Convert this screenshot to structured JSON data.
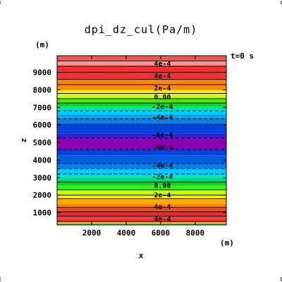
{
  "chart_data": {
    "type": "heatmap",
    "title": "dpi_dz_cul(Pa/m)",
    "time_label": "t=0  s",
    "xlabel": "x",
    "ylabel": "z",
    "x_unit": "(m)",
    "y_unit": "(m)",
    "xlim": [
      0,
      9800
    ],
    "ylim": [
      300,
      9950
    ],
    "x_ticks": [
      2000,
      4000,
      6000,
      8000
    ],
    "x_tick_labels": [
      "2000",
      "4000",
      "6000",
      "8000"
    ],
    "y_ticks": [
      1000,
      2000,
      3000,
      4000,
      5000,
      6000,
      7000,
      8000,
      9000
    ],
    "y_tick_labels": [
      "1000",
      "2000",
      "3000",
      "4000",
      "5000",
      "6000",
      "7000",
      "8000",
      "9000"
    ],
    "bands": [
      {
        "z0": 9650,
        "z1": 9950,
        "color": "#ff5050"
      },
      {
        "z0": 9350,
        "z1": 9650,
        "color": "#ff9090"
      },
      {
        "z0": 9000,
        "z1": 9350,
        "color": "#ff2a2a"
      },
      {
        "z0": 8600,
        "z1": 9000,
        "color": "#ff3030"
      },
      {
        "z0": 8300,
        "z1": 8600,
        "color": "#ff8800"
      },
      {
        "z0": 8000,
        "z1": 8300,
        "color": "#ff8800"
      },
      {
        "z0": 7800,
        "z1": 8000,
        "color": "#ffee00"
      },
      {
        "z0": 7500,
        "z1": 7800,
        "color": "#ccff00"
      },
      {
        "z0": 7250,
        "z1": 7500,
        "color": "#44ee00"
      },
      {
        "z0": 7050,
        "z1": 7250,
        "color": "#00dd22"
      },
      {
        "z0": 6800,
        "z1": 7050,
        "color": "#00ddbb"
      },
      {
        "z0": 6600,
        "z1": 6800,
        "color": "#00ccff"
      },
      {
        "z0": 6350,
        "z1": 6600,
        "color": "#00a8f0"
      },
      {
        "z0": 6050,
        "z1": 6350,
        "color": "#0080e8"
      },
      {
        "z0": 5500,
        "z1": 6050,
        "color": "#0044dd"
      },
      {
        "z0": 5250,
        "z1": 5500,
        "color": "#3322cc"
      },
      {
        "z0": 4600,
        "z1": 5250,
        "color": "#8a00b0"
      },
      {
        "z0": 4250,
        "z1": 4600,
        "color": "#0044dd"
      },
      {
        "z0": 3800,
        "z1": 4250,
        "color": "#0060e0"
      },
      {
        "z0": 3500,
        "z1": 3800,
        "color": "#0080e8"
      },
      {
        "z0": 3200,
        "z1": 3500,
        "color": "#00ccff"
      },
      {
        "z0": 3000,
        "z1": 3200,
        "color": "#00e0e0"
      },
      {
        "z0": 2750,
        "z1": 3000,
        "color": "#00dd77"
      },
      {
        "z0": 2550,
        "z1": 2750,
        "color": "#00dd22"
      },
      {
        "z0": 2300,
        "z1": 2550,
        "color": "#44ee00"
      },
      {
        "z0": 2000,
        "z1": 2300,
        "color": "#ccff00"
      },
      {
        "z0": 1800,
        "z1": 2000,
        "color": "#ffee00"
      },
      {
        "z0": 1500,
        "z1": 1800,
        "color": "#ffaa00"
      },
      {
        "z0": 1300,
        "z1": 1500,
        "color": "#ff8800"
      },
      {
        "z0": 1050,
        "z1": 1300,
        "color": "#ff4422"
      },
      {
        "z0": 800,
        "z1": 1050,
        "color": "#ff2222"
      },
      {
        "z0": 500,
        "z1": 800,
        "color": "#ff3a3a"
      },
      {
        "z0": 400,
        "z1": 500,
        "color": "#ff9933"
      },
      {
        "z0": 340,
        "z1": 400,
        "color": "#88dd22"
      },
      {
        "z0": 300,
        "z1": 340,
        "color": "#00cc44"
      }
    ],
    "contours": [
      {
        "z": 9650,
        "dashed": false
      },
      {
        "z": 9350,
        "dashed": false
      },
      {
        "z": 9000,
        "dashed": false
      },
      {
        "z": 8600,
        "dashed": false
      },
      {
        "z": 8300,
        "dashed": false
      },
      {
        "z": 7800,
        "dashed": false
      },
      {
        "z": 7500,
        "dashed": false
      },
      {
        "z": 7250,
        "dashed": false
      },
      {
        "z": 6800,
        "dashed": true
      },
      {
        "z": 6350,
        "dashed": true
      },
      {
        "z": 6050,
        "dashed": true
      },
      {
        "z": 5250,
        "dashed": true
      },
      {
        "z": 4600,
        "dashed": true
      },
      {
        "z": 3800,
        "dashed": true
      },
      {
        "z": 3500,
        "dashed": true
      },
      {
        "z": 3200,
        "dashed": true
      },
      {
        "z": 2750,
        "dashed": false
      },
      {
        "z": 2300,
        "dashed": false
      },
      {
        "z": 2000,
        "dashed": false
      },
      {
        "z": 1800,
        "dashed": false
      },
      {
        "z": 1300,
        "dashed": false
      },
      {
        "z": 1050,
        "dashed": false
      },
      {
        "z": 800,
        "dashed": false
      },
      {
        "z": 500,
        "dashed": false
      }
    ],
    "contour_labels": [
      {
        "z": 9500,
        "text": "4e-4"
      },
      {
        "z": 8800,
        "text": "4e-4"
      },
      {
        "z": 8100,
        "text": "2e-4"
      },
      {
        "z": 7600,
        "text": "0.00"
      },
      {
        "z": 7050,
        "text": "-2e-4"
      },
      {
        "z": 6450,
        "text": "-4e-4"
      },
      {
        "z": 5450,
        "text": "-6e-4"
      },
      {
        "z": 4750,
        "text": "-6e-4"
      },
      {
        "z": 3700,
        "text": "-4e-4"
      },
      {
        "z": 3050,
        "text": "-2e-4"
      },
      {
        "z": 2550,
        "text": "0.00"
      },
      {
        "z": 2000,
        "text": "2e-4"
      },
      {
        "z": 1350,
        "text": "4e-4"
      },
      {
        "z": 650,
        "text": "4e-4"
      }
    ],
    "contour_label_x": 6100
  }
}
